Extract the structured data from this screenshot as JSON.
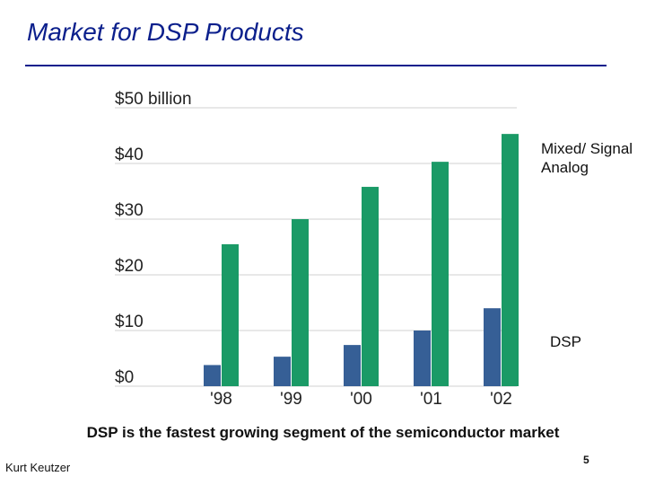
{
  "slide": {
    "title": "Market for DSP Products",
    "annotation_mixed": "Mixed/ Signal Analog",
    "annotation_dsp": "DSP",
    "caption": "DSP is the fastest growing segment of the semiconductor market",
    "author": "Kurt Keutzer",
    "page_number": "5"
  },
  "colors": {
    "title": "#0b1f8c",
    "dsp": "#365f96",
    "mixed_signal": "#1a9a66",
    "grid": "#d2d2d2"
  },
  "chart_data": {
    "type": "bar",
    "title": "",
    "xlabel": "",
    "ylabel": "",
    "categories": [
      "'98",
      "'99",
      "'00",
      "'01",
      "'02"
    ],
    "ylim": [
      0,
      50
    ],
    "yticks": [
      0,
      10,
      20,
      30,
      40,
      50
    ],
    "ytick_labels": [
      "$0",
      "$10",
      "$20",
      "$30",
      "$40",
      "$50 billion"
    ],
    "series": [
      {
        "name": "DSP",
        "color": "#365f96",
        "values": [
          3.8,
          5.3,
          7.4,
          10,
          14
        ]
      },
      {
        "name": "Mixed/ Signal Analog",
        "color": "#1a9a66",
        "values": [
          25.5,
          30,
          35.8,
          40.3,
          45.3
        ]
      }
    ]
  }
}
